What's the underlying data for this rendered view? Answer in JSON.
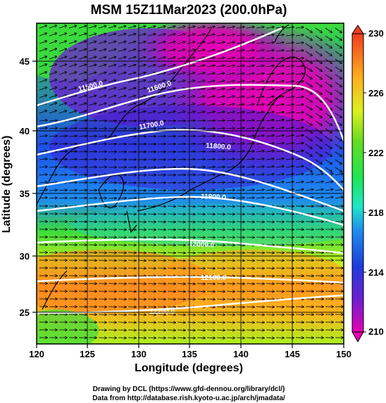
{
  "title": "MSM 15Z11Mar2023 (200.0hPa)",
  "x_label": "Longitude (degrees)",
  "y_label": "Latitude  (degrees)",
  "x_ticks": [
    "120",
    "125",
    "130",
    "135",
    "140",
    "145",
    "150"
  ],
  "y_ticks": [
    "25",
    "30",
    "35",
    "40",
    "45"
  ],
  "colorbar": {
    "ticks": [
      "210",
      "214",
      "218",
      "222",
      "226",
      "230"
    ],
    "colors": [
      "#e600b4",
      "#5a1ed2",
      "#1e3cdc",
      "#1eb4f0",
      "#1ee6a0",
      "#3cdc3c",
      "#c8f01e",
      "#ffd21e",
      "#ff8c1e",
      "#f03c1e"
    ]
  },
  "contour_labels": [
    "11500.0",
    "11600.0",
    "11700.0",
    "11800.0",
    "11900.0",
    "12000.0",
    "12100.0",
    "12200.0"
  ],
  "credits": {
    "line1": "Drawing by DCL (https://www.gfd-dennou.org/library/dcl/)",
    "line2": "Data from http://database.rish.kyoto-u.ac.jp/arch/jmadata/"
  }
}
